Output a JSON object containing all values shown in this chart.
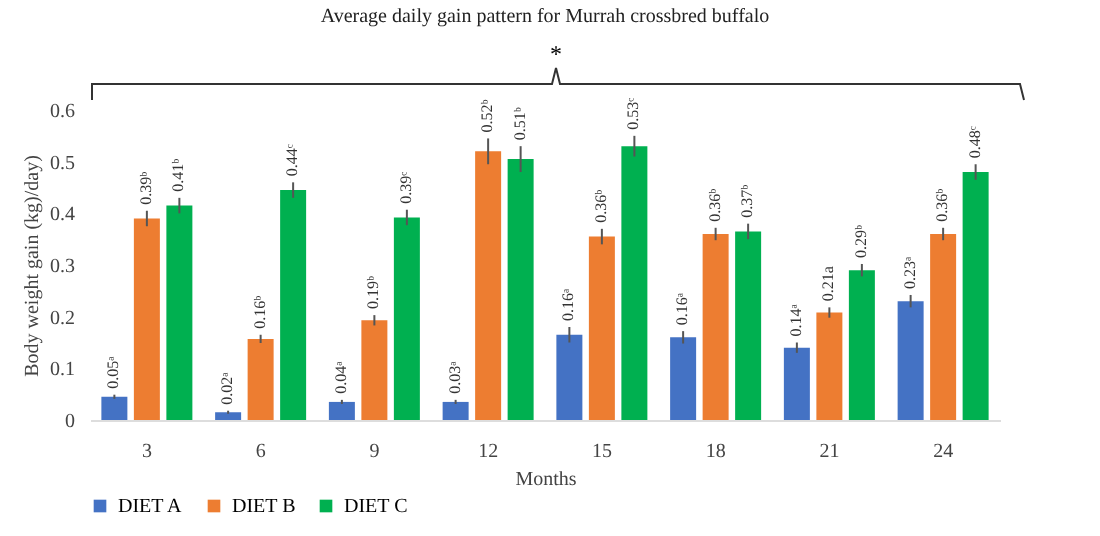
{
  "chart_data": {
    "type": "bar",
    "title": "Average daily gain pattern for Murrah crossbred buffalo",
    "xlabel": "Months",
    "ylabel": "Body weight gain (kg)/day)",
    "categories": [
      "3",
      "6",
      "9",
      "12",
      "15",
      "18",
      "21",
      "24"
    ],
    "series": [
      {
        "name": "DIET A",
        "color": "#4472c4",
        "values": [
          0.045,
          0.015,
          0.035,
          0.035,
          0.165,
          0.16,
          0.14,
          0.23
        ],
        "errors": [
          0.004,
          0.003,
          0.004,
          0.004,
          0.015,
          0.012,
          0.01,
          0.012
        ],
        "value_labels": [
          "0.05ᵃ",
          "0.02ᵃ",
          "0.04ᵃ",
          "0.03ᵃ",
          "0.16ᵃ",
          "0.16ᵃ",
          "0.14ᵃ",
          "0.23ᵃ"
        ]
      },
      {
        "name": "DIET B",
        "color": "#ed7d31",
        "values": [
          0.39,
          0.157,
          0.193,
          0.52,
          0.355,
          0.36,
          0.208,
          0.36
        ],
        "errors": [
          0.015,
          0.008,
          0.01,
          0.025,
          0.015,
          0.012,
          0.01,
          0.012
        ],
        "value_labels": [
          "0.39ᵇ",
          "0.16ᵇ",
          "0.19ᵇ",
          "0.52ᵇ",
          "0.36ᵇ",
          "0.36ᵇ",
          "0.21a",
          "0.36ᵇ"
        ]
      },
      {
        "name": "DIET C",
        "color": "#00b050",
        "values": [
          0.415,
          0.445,
          0.392,
          0.505,
          0.53,
          0.365,
          0.29,
          0.48
        ],
        "errors": [
          0.015,
          0.015,
          0.015,
          0.025,
          0.02,
          0.015,
          0.012,
          0.015
        ],
        "value_labels": [
          "0.41ᵇ",
          "0.44ᶜ",
          "0.39ᶜ",
          "0.51ᵇ",
          "0.53ᶜ",
          "0.37ᵇ",
          "0.29ᵇ",
          "0.48ᶜ"
        ]
      }
    ],
    "ylim": [
      0,
      0.6
    ],
    "yticks": [
      0,
      0.1,
      0.2,
      0.3,
      0.4,
      0.5,
      0.6
    ],
    "grid": false,
    "legend": "bottom",
    "annotations": [
      "*"
    ]
  }
}
